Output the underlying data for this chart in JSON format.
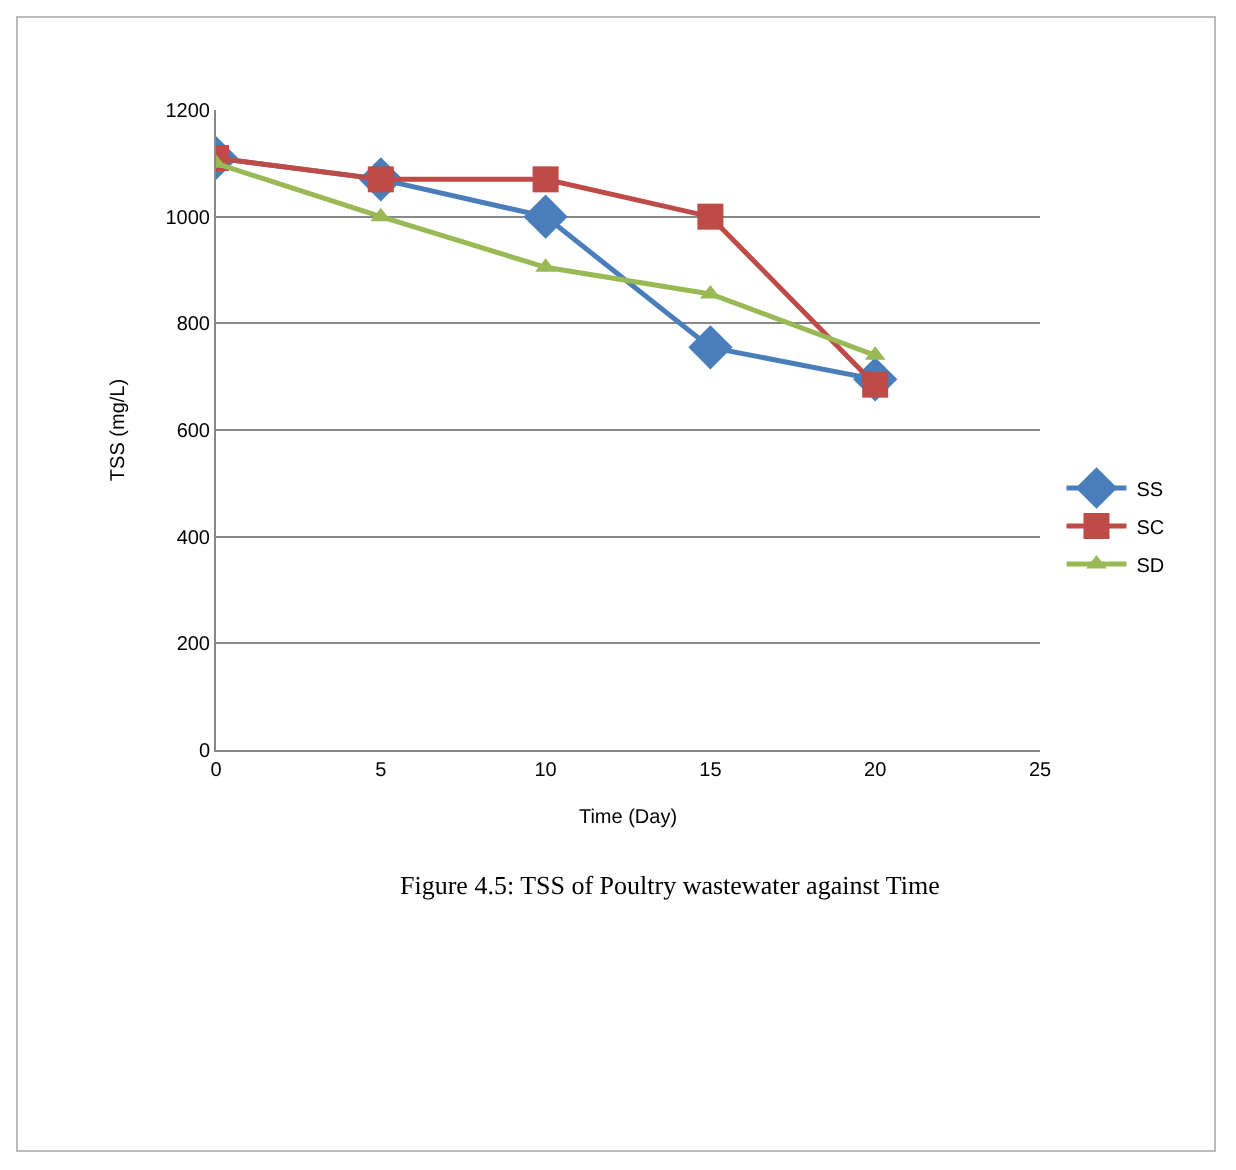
{
  "chart_data": {
    "type": "line",
    "xlabel": "Time (Day)",
    "ylabel": "TSS (mg/L)",
    "x": [
      0,
      5,
      10,
      15,
      20
    ],
    "series": [
      {
        "name": "SS",
        "color": "#4a7ebb",
        "marker": "diamond",
        "values": [
          1110,
          1070,
          1000,
          755,
          695
        ]
      },
      {
        "name": "SC",
        "color": "#be4b48",
        "marker": "square",
        "values": [
          1110,
          1070,
          1070,
          1000,
          685
        ]
      },
      {
        "name": "SD",
        "color": "#98b954",
        "marker": "triangle",
        "values": [
          1100,
          1000,
          905,
          855,
          740
        ]
      }
    ],
    "xlim": [
      0,
      25
    ],
    "xticks": [
      0,
      5,
      10,
      15,
      20,
      25
    ],
    "ylim": [
      0,
      1200
    ],
    "yticks": [
      0,
      200,
      400,
      600,
      800,
      1000,
      1200
    ],
    "grid": "y",
    "legend": "right",
    "annotations": [
      "Figure 4.5: TSS of Poultry wastewater against Time"
    ]
  }
}
